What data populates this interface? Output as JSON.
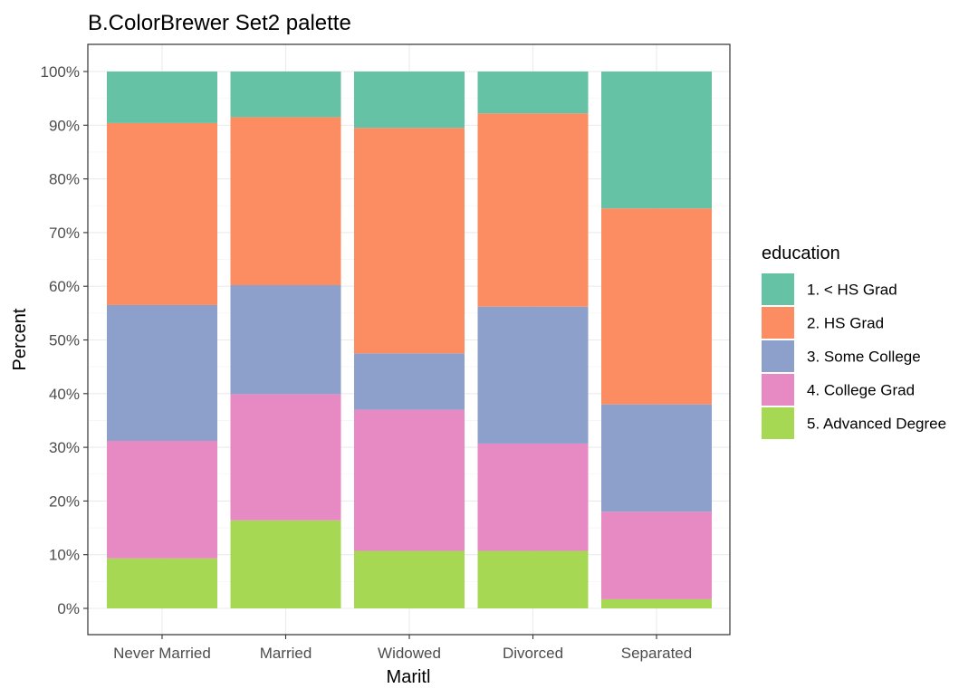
{
  "chart_data": {
    "type": "bar",
    "stacked": true,
    "percent": true,
    "title": "B.ColorBrewer Set2 palette",
    "xlabel": "Maritl",
    "ylabel": "Percent",
    "ylim": [
      0,
      1
    ],
    "yticks": [
      0,
      0.1,
      0.2,
      0.3,
      0.4,
      0.5,
      0.6,
      0.7,
      0.8,
      0.9,
      1.0
    ],
    "ytick_labels": [
      "0%",
      "10%",
      "20%",
      "30%",
      "40%",
      "50%",
      "60%",
      "70%",
      "80%",
      "90%",
      "100%"
    ],
    "categories": [
      "Never Married",
      "Married",
      "Widowed",
      "Divorced",
      "Separated"
    ],
    "legend_title": "education",
    "legend_position": "right",
    "grid": true,
    "series": [
      {
        "name": "1. < HS Grad",
        "color": "#66c2a5",
        "values": [
          0.096,
          0.085,
          0.105,
          0.078,
          0.255
        ]
      },
      {
        "name": "2. HS Grad",
        "color": "#fc8d62",
        "values": [
          0.339,
          0.313,
          0.42,
          0.36,
          0.365
        ]
      },
      {
        "name": "3. Some College",
        "color": "#8da0cb",
        "values": [
          0.253,
          0.203,
          0.105,
          0.255,
          0.2
        ]
      },
      {
        "name": "4. College Grad",
        "color": "#e78ac3",
        "values": [
          0.219,
          0.235,
          0.263,
          0.2,
          0.163
        ]
      },
      {
        "name": "5. Advanced Degree",
        "color": "#a6d854",
        "values": [
          0.093,
          0.164,
          0.107,
          0.107,
          0.017
        ]
      }
    ]
  }
}
